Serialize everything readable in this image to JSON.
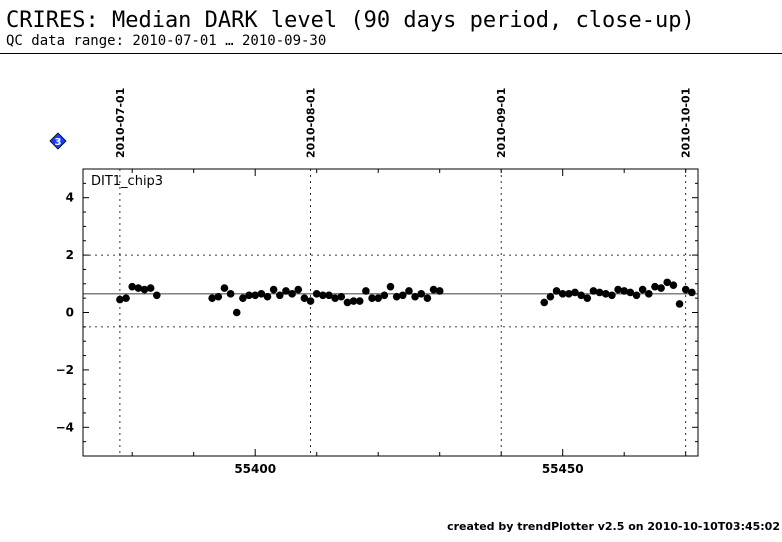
{
  "header": {
    "title": "CRIRES: Median DARK level (90 days period, close-up)",
    "subtitle": "QC data range: 2010-07-01 … 2010-09-30"
  },
  "footer": {
    "text": "created by trendPlotter v2.5 on 2010-10-10T03:45:02"
  },
  "marker": {
    "label": "3",
    "color": "#1a3cff"
  },
  "chart_data": {
    "type": "scatter",
    "panel_label": "DIT1_chip3",
    "xlim": [
      55372,
      55472
    ],
    "ylim": [
      -5,
      5
    ],
    "x_ticks": [
      55400,
      55450
    ],
    "y_ticks": [
      -4,
      -2,
      0,
      2,
      4
    ],
    "date_marks": [
      {
        "x": 55378,
        "label": "2010-07-01"
      },
      {
        "x": 55409,
        "label": "2010-08-01"
      },
      {
        "x": 55440,
        "label": "2010-09-01"
      },
      {
        "x": 55470,
        "label": "2010-10-01"
      }
    ],
    "reference_lines": {
      "median": 0.65,
      "upper": 2.0,
      "lower": -0.5
    },
    "series": [
      {
        "x": [
          55378,
          55379,
          55380,
          55381,
          55382,
          55383,
          55384,
          55393,
          55394,
          55395,
          55396,
          55397,
          55398,
          55399,
          55400,
          55401,
          55402,
          55403,
          55404,
          55405,
          55406,
          55407,
          55408,
          55409,
          55410,
          55411,
          55412,
          55413,
          55414,
          55415,
          55416,
          55417,
          55418,
          55419,
          55420,
          55421,
          55422,
          55423,
          55424,
          55425,
          55426,
          55427,
          55428,
          55429,
          55430,
          55447,
          55448,
          55449,
          55450,
          55451,
          55452,
          55453,
          55454,
          55455,
          55456,
          55457,
          55458,
          55459,
          55460,
          55461,
          55462,
          55463,
          55464,
          55465,
          55466,
          55467,
          55468,
          55469,
          55470,
          55471
        ],
        "y": [
          0.45,
          0.5,
          0.9,
          0.85,
          0.8,
          0.85,
          0.6,
          0.5,
          0.55,
          0.85,
          0.65,
          0.0,
          0.5,
          0.6,
          0.6,
          0.65,
          0.55,
          0.8,
          0.6,
          0.75,
          0.65,
          0.8,
          0.5,
          0.4,
          0.65,
          0.6,
          0.6,
          0.5,
          0.55,
          0.35,
          0.4,
          0.4,
          0.75,
          0.5,
          0.5,
          0.6,
          0.9,
          0.55,
          0.6,
          0.75,
          0.55,
          0.65,
          0.5,
          0.8,
          0.75,
          0.35,
          0.55,
          0.75,
          0.65,
          0.65,
          0.7,
          0.6,
          0.5,
          0.75,
          0.7,
          0.65,
          0.6,
          0.8,
          0.75,
          0.7,
          0.6,
          0.8,
          0.65,
          0.9,
          0.85,
          1.05,
          0.95,
          0.3,
          0.8,
          0.7
        ]
      }
    ]
  }
}
